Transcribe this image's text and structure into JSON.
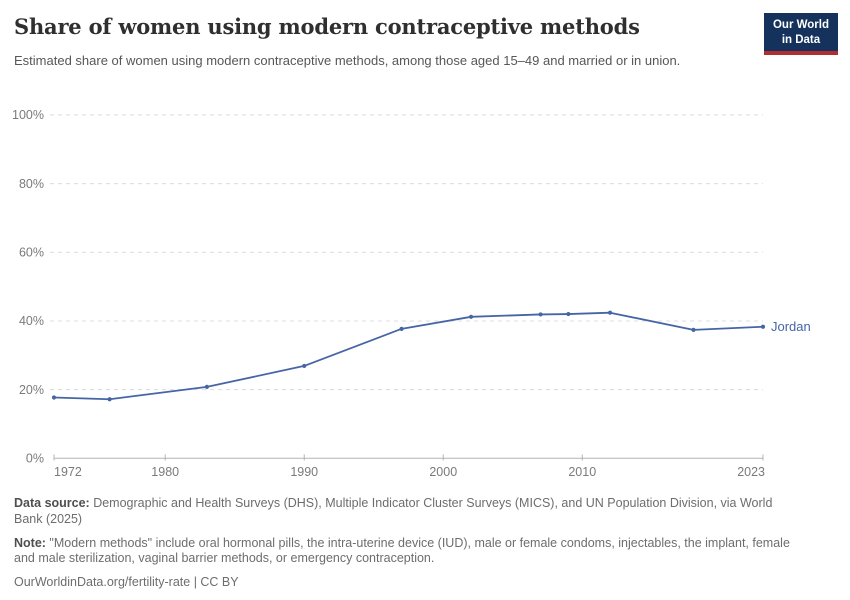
{
  "header": {
    "title": "Share of women using modern contraceptive methods",
    "subtitle": "Estimated share of women using modern contraceptive methods, among those aged 15–49 and married or in union.",
    "logo": {
      "line1": "Our World",
      "line2": "in Data"
    }
  },
  "chart_data": {
    "type": "line",
    "title": "Share of women using modern contraceptive methods",
    "xlabel": "",
    "ylabel": "",
    "xlim": [
      1972,
      2023
    ],
    "ylim": [
      0,
      100
    ],
    "x_ticks": [
      1972,
      1980,
      1990,
      2000,
      2010,
      2023
    ],
    "y_ticks": [
      0,
      20,
      40,
      60,
      80,
      100
    ],
    "y_tick_suffix": "%",
    "grid": "horizontal-dashed",
    "legend_position": "end-of-line-label",
    "series": [
      {
        "name": "Jordan",
        "color": "#4665a5",
        "x": [
          1972,
          1976,
          1983,
          1990,
          1997,
          2002,
          2007,
          2009,
          2012,
          2018,
          2023
        ],
        "values": [
          17.7,
          17.2,
          20.8,
          26.9,
          37.7,
          41.2,
          41.9,
          42.0,
          42.4,
          37.4,
          38.3
        ]
      }
    ]
  },
  "footer": {
    "data_source_label": "Data source:",
    "data_source_text": " Demographic and Health Surveys (DHS), Multiple Indicator Cluster Surveys (MICS), and UN Population Division, via World Bank (2025)",
    "note_label": "Note:",
    "note_text": " \"Modern methods\" include oral hormonal pills, the intra-uterine device (IUD), male or female condoms, injectables, the implant, female and male sterilization, vaginal barrier methods, or emergency contraception.",
    "link": "OurWorldinData.org/fertility-rate | CC BY"
  },
  "colors": {
    "line": "#4665a5",
    "grid": "#dcdcdc",
    "axis": "#b3b3b3",
    "axis_label": "#7a7a7a",
    "title_text": "#2f2f2f",
    "subtitle_text": "#575757",
    "footer_text": "#6d6d6d",
    "logo_bg": "#14325c",
    "logo_bar": "#b02e31"
  }
}
